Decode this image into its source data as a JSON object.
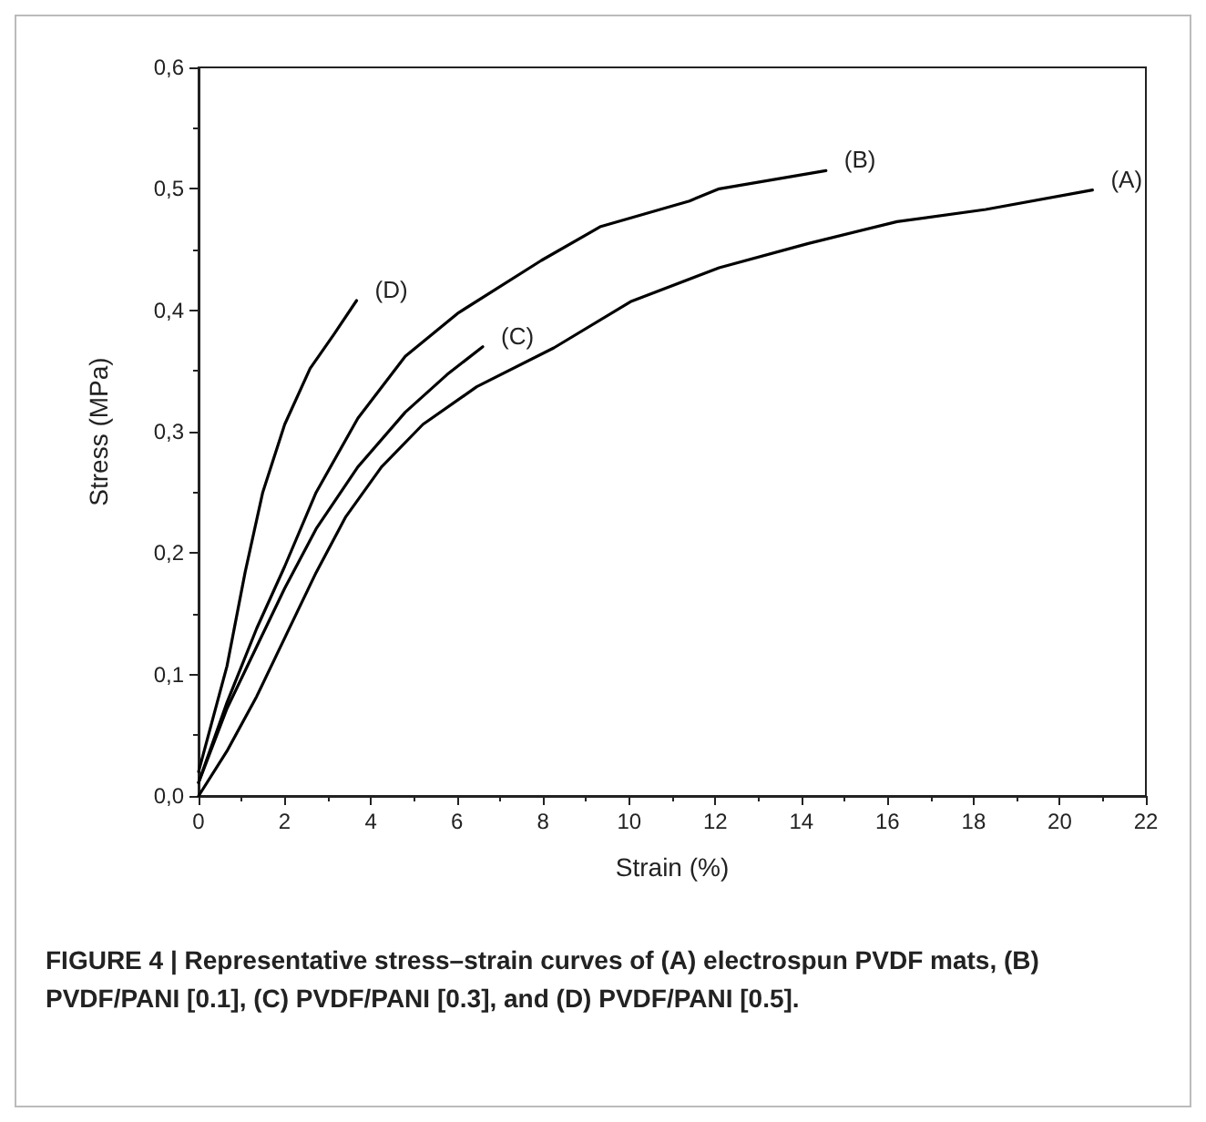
{
  "chart_data": {
    "type": "line",
    "xlabel": "Strain (%)",
    "ylabel": "Stress (MPa)",
    "annotations": [
      "FIGURE 4 | Representative stress–strain curves of (A) electrospun PVDF mats, (B) PVDF/PANI [0.1], (C) PVDF/PANI [0.3], and (D) PVDF/PANI [0.5]."
    ],
    "xlim": [
      0,
      22
    ],
    "xticks": [
      0,
      2,
      4,
      6,
      8,
      10,
      12,
      14,
      16,
      18,
      20,
      22
    ],
    "ylim": [
      0,
      0.6
    ],
    "yticks": [
      {
        "value": 0,
        "label": "0,0"
      },
      {
        "value": 0.1,
        "label": "0,1"
      },
      {
        "value": 0.2,
        "label": "0,2"
      },
      {
        "value": 0.3,
        "label": "0,3"
      },
      {
        "value": 0.4,
        "label": "0,4"
      },
      {
        "value": 0.5,
        "label": "0,5"
      },
      {
        "value": 0.6,
        "label": "0,6"
      }
    ],
    "grid": false,
    "marker": "none",
    "line_style": "solid",
    "series": [
      {
        "name": "(A)",
        "color": "#000000",
        "x": [
          0,
          0.66,
          1.35,
          2.04,
          2.73,
          3.42,
          4.25,
          5.21,
          6.46,
          8.25,
          10.03,
          12.09,
          14.16,
          16.22,
          18.28,
          20.76
        ],
        "values": [
          0,
          0.037,
          0.082,
          0.133,
          0.184,
          0.23,
          0.271,
          0.306,
          0.337,
          0.369,
          0.407,
          0.435,
          0.455,
          0.473,
          0.483,
          0.499
        ]
      },
      {
        "name": "(B)",
        "color": "#000000",
        "x": [
          0,
          0.66,
          1.35,
          2,
          2.73,
          3.7,
          4.8,
          6.04,
          7.96,
          9.34,
          11.4,
          12.09,
          14.57
        ],
        "values": [
          0.011,
          0.077,
          0.138,
          0.189,
          0.25,
          0.311,
          0.362,
          0.398,
          0.441,
          0.469,
          0.49,
          0.5,
          0.515
        ]
      },
      {
        "name": "(C)",
        "color": "#000000",
        "x": [
          0,
          0.66,
          1.35,
          2,
          2.73,
          3.7,
          4.8,
          5.77,
          6.6
        ],
        "values": [
          0.011,
          0.072,
          0.123,
          0.171,
          0.22,
          0.271,
          0.316,
          0.347,
          0.37
        ]
      },
      {
        "name": "(D)",
        "color": "#000000",
        "x": [
          0,
          0.66,
          1.08,
          1.49,
          2,
          2.59,
          3.14,
          3.67
        ],
        "values": [
          0.02,
          0.107,
          0.184,
          0.25,
          0.306,
          0.352,
          0.38,
          0.408
        ]
      }
    ]
  }
}
